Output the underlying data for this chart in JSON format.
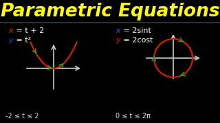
{
  "background_color": "#000000",
  "title": "Parametric Equations",
  "title_color": "#ffff00",
  "title_fontsize": 19,
  "title_fontweight": "bold",
  "left_eq1_x": "x",
  "left_eq1_rest": " = t + 2",
  "left_eq2_x": "y",
  "left_eq2_rest": " = t²",
  "left_eq1_x_color": "#dd2200",
  "left_eq2_x_color": "#2244cc",
  "left_eq_rest_color": "#ffffff",
  "right_eq1_x": "x",
  "right_eq1_rest": " = 2sint",
  "right_eq2_x": "y",
  "right_eq2_rest": " = 2cost",
  "right_eq1_x_color": "#3355ee",
  "right_eq2_x_color": "#dd2200",
  "left_range": "-2 ≤ t ≤ 2",
  "right_range": "0 ≤ t ≤ 2π",
  "range_color": "#dddddd",
  "range_t_color": "#22aa22",
  "axis_color": "#cccccc",
  "parabola_color": "#cc2200",
  "circle_color": "#cc2200",
  "arrow_color": "#22aa22",
  "divider_color": "#888888"
}
